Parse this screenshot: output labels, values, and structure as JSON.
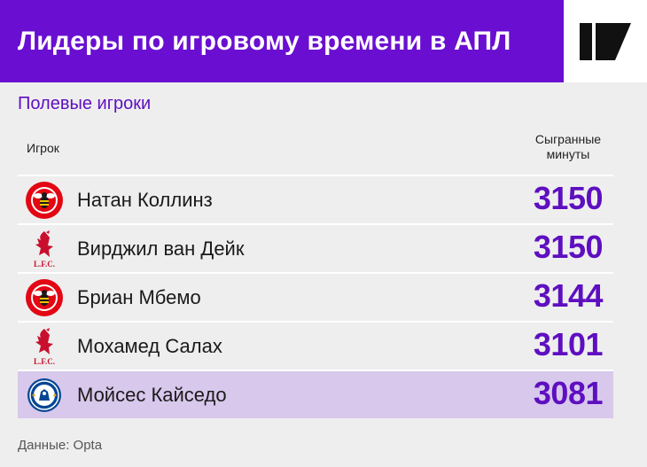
{
  "header": {
    "title": "Лидеры по игровому времени в АПЛ",
    "logo_icon": "media-logo-icon"
  },
  "subtitle": "Полевые игроки",
  "columns": {
    "player": "Игрок",
    "minutes_line1": "Сыгранные",
    "minutes_line2": "минуты"
  },
  "rows": [
    {
      "name": "Натан Коллинз",
      "minutes": "3150",
      "club_icon": "brentford-crest-icon"
    },
    {
      "name": "Вирджил ван Дейк",
      "minutes": "3150",
      "club_icon": "liverpool-crest-icon",
      "club_label": "L.F.C."
    },
    {
      "name": "Бриан Мбемо",
      "minutes": "3144",
      "club_icon": "brentford-crest-icon"
    },
    {
      "name": "Мохамед Салах",
      "minutes": "3101",
      "club_icon": "liverpool-crest-icon",
      "club_label": "L.F.C."
    },
    {
      "name": "Мойсес Кайседо",
      "minutes": "3081",
      "club_icon": "chelsea-crest-icon",
      "highlighted": true
    }
  ],
  "source": "Данные: Opta",
  "colors": {
    "accent": "#6a0fd1",
    "number": "#5e0fc0",
    "highlight": "#d8c8ec",
    "brentford_red": "#e30613",
    "liverpool_red": "#c8102e",
    "chelsea_blue": "#034694"
  }
}
